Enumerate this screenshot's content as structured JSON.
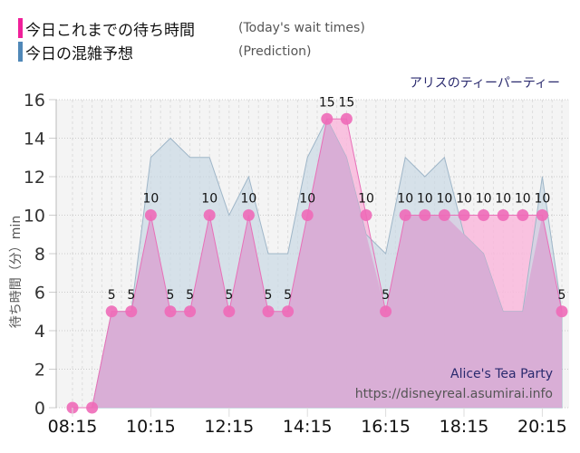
{
  "legend": {
    "items": [
      {
        "label_jp": "今日これまでの待ち時間",
        "label_en": "(Today's wait times)",
        "color": "#f0209a"
      },
      {
        "label_jp": "今日の混雑予想",
        "label_en": "(Prediction)",
        "color": "#5088b8"
      }
    ]
  },
  "attraction": {
    "name_jp": "アリスのティーパーティー",
    "name_en": "Alice's Tea Party"
  },
  "watermark": {
    "url": "https://disneyreal.asumirai.info"
  },
  "chart_data": {
    "type": "area",
    "title": "アリスのティーパーティー",
    "xlabel": "",
    "ylabel": "待ち時間（分）min",
    "ylim": [
      0,
      16
    ],
    "yticks": [
      0,
      2,
      4,
      6,
      8,
      10,
      12,
      14,
      16
    ],
    "xtick_labels": [
      "08:15",
      "10:15",
      "12:15",
      "14:15",
      "16:15",
      "18:15",
      "20:15"
    ],
    "grid": true,
    "legend_position": "top-left",
    "x": [
      "08:15",
      "08:45",
      "09:15",
      "09:45",
      "10:15",
      "10:45",
      "11:15",
      "11:45",
      "12:15",
      "12:45",
      "13:15",
      "13:45",
      "14:15",
      "14:45",
      "15:15",
      "15:45",
      "16:15",
      "16:45",
      "17:15",
      "17:45",
      "18:15",
      "18:45",
      "19:15",
      "19:45",
      "20:15",
      "20:45"
    ],
    "series": [
      {
        "name": "今日これまでの待ち時間 (Today's wait times)",
        "color": "#f0209a",
        "values": [
          0,
          0,
          5,
          5,
          10,
          5,
          5,
          10,
          5,
          10,
          5,
          5,
          10,
          15,
          15,
          10,
          5,
          10,
          10,
          10,
          10,
          10,
          10,
          10,
          10,
          5
        ]
      },
      {
        "name": "今日の混雑予想 (Prediction)",
        "color": "#5088b8",
        "values": [
          0,
          0,
          5,
          5,
          13,
          14,
          13,
          13,
          10,
          12,
          8,
          8,
          13,
          15,
          13,
          9,
          8,
          13,
          12,
          13,
          9,
          8,
          5,
          5,
          12,
          5
        ]
      }
    ]
  }
}
